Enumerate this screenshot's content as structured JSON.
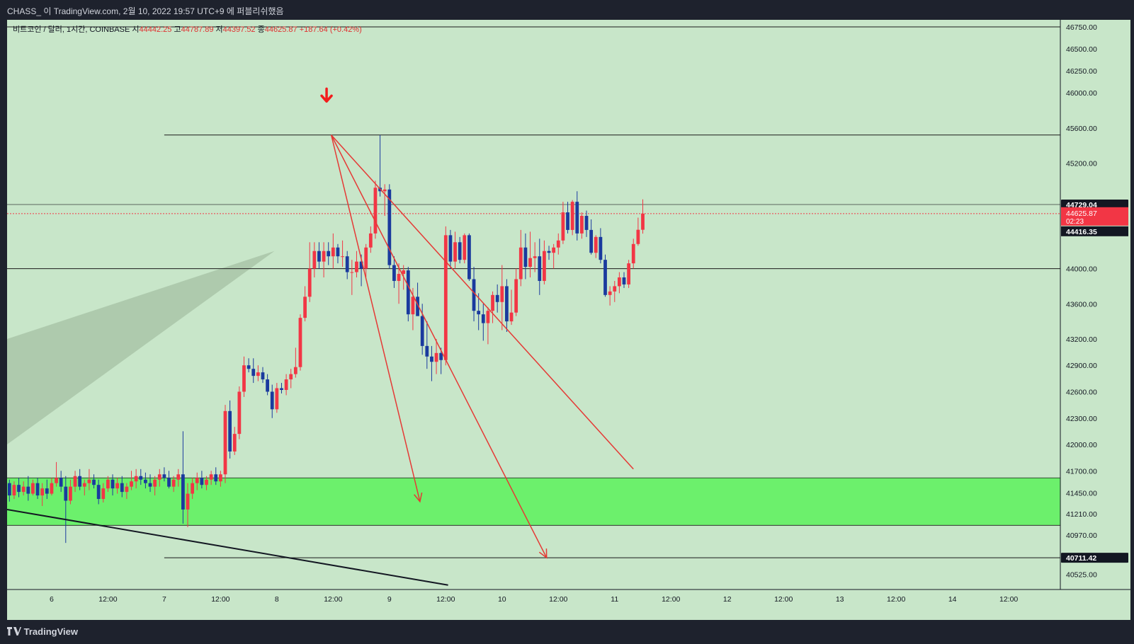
{
  "header": {
    "publish_line": "CHASS_ 이 TradingView.com, 2월 10, 2022 19:57 UTC+9 에 퍼블리쉬했음"
  },
  "legend": {
    "symbol": "비트코인 / 달러, 1시간, COINBASE",
    "open_label": "시",
    "open": "44442.25",
    "high_label": "고",
    "high": "44787.89",
    "low_label": "저",
    "low": "44397.52",
    "close_label": "종",
    "close": "44625.87",
    "change": "+187.64 (+0.42%)"
  },
  "footer": {
    "brand": "TradingView",
    "logo_icon": "tradingview-logo-icon"
  },
  "price_badges": {
    "high_badge": "44729.04",
    "last_price": "44625.87",
    "countdown": "02:23",
    "low_badge": "44416.35",
    "target_badge": "40711.42"
  },
  "colors": {
    "background": "#c8e6c9",
    "up_candle": "#f23645",
    "down_candle": "#1a3a9e",
    "zone": "#6cf06c",
    "trendline": "#e53935",
    "wedge": "#a9c4a8"
  },
  "chart_data": {
    "type": "candlestick",
    "symbol": "BTC/USD",
    "interval": "1h",
    "y_axis": {
      "ticks": [
        40525,
        40970,
        41210,
        41450,
        41700,
        42000,
        42300,
        42600,
        42900,
        43200,
        43600,
        44000,
        45200,
        45600,
        46000,
        46250,
        46500,
        46750
      ],
      "range": [
        40350,
        46830
      ]
    },
    "x_axis": {
      "ticks": [
        {
          "label": "6",
          "t": 0
        },
        {
          "label": "12:00",
          "t": 12
        },
        {
          "label": "7",
          "t": 24
        },
        {
          "label": "12:00",
          "t": 36
        },
        {
          "label": "8",
          "t": 48
        },
        {
          "label": "12:00",
          "t": 60
        },
        {
          "label": "9",
          "t": 72
        },
        {
          "label": "12:00",
          "t": 84
        },
        {
          "label": "10",
          "t": 96
        },
        {
          "label": "12:00",
          "t": 108
        },
        {
          "label": "11",
          "t": 120
        },
        {
          "label": "12:00",
          "t": 132
        },
        {
          "label": "12",
          "t": 144
        },
        {
          "label": "12:00",
          "t": 156
        },
        {
          "label": "13",
          "t": 168
        },
        {
          "label": "12:00",
          "t": 180
        },
        {
          "label": "14",
          "t": 192
        },
        {
          "label": "12:00",
          "t": 204
        }
      ],
      "range": [
        -9.5,
        215
      ]
    },
    "candles_ohlc": [
      [
        41560,
        41600,
        41350,
        41420
      ],
      [
        41420,
        41580,
        41380,
        41540
      ],
      [
        41540,
        41620,
        41400,
        41460
      ],
      [
        41460,
        41580,
        41420,
        41520
      ],
      [
        41520,
        41640,
        41360,
        41440
      ],
      [
        41440,
        41600,
        41420,
        41560
      ],
      [
        41560,
        41620,
        41380,
        41420
      ],
      [
        41420,
        41560,
        41300,
        41500
      ],
      [
        41500,
        41600,
        41380,
        41440
      ],
      [
        41440,
        41620,
        41420,
        41560
      ],
      [
        41560,
        41800,
        41520,
        41620
      ],
      [
        41620,
        41700,
        41460,
        41520
      ],
      [
        41520,
        41640,
        40880,
        41360
      ],
      [
        41360,
        41600,
        41320,
        41520
      ],
      [
        41520,
        41700,
        41460,
        41640
      ],
      [
        41640,
        41720,
        41480,
        41520
      ],
      [
        41520,
        41600,
        41420,
        41560
      ],
      [
        41560,
        41720,
        41480,
        41600
      ],
      [
        41600,
        41660,
        41500,
        41540
      ],
      [
        41540,
        41600,
        41320,
        41380
      ],
      [
        41380,
        41560,
        41340,
        41500
      ],
      [
        41500,
        41640,
        41460,
        41600
      ],
      [
        41600,
        41660,
        41420,
        41500
      ],
      [
        41500,
        41620,
        41440,
        41560
      ],
      [
        41560,
        41640,
        41400,
        41460
      ],
      [
        41460,
        41560,
        41380,
        41520
      ],
      [
        41520,
        41700,
        41480,
        41580
      ],
      [
        41580,
        41720,
        41500,
        41640
      ],
      [
        41640,
        41720,
        41540,
        41600
      ],
      [
        41600,
        41680,
        41500,
        41560
      ],
      [
        41560,
        41660,
        41460,
        41520
      ],
      [
        41520,
        41640,
        41420,
        41600
      ],
      [
        41600,
        41720,
        41520,
        41660
      ],
      [
        41660,
        41740,
        41580,
        41620
      ],
      [
        41620,
        41700,
        41500,
        41520
      ],
      [
        41520,
        41640,
        41460,
        41600
      ],
      [
        41600,
        41720,
        41520,
        41660
      ],
      [
        41660,
        42150,
        41100,
        41260
      ],
      [
        41260,
        41560,
        41060,
        41440
      ],
      [
        41440,
        41620,
        41380,
        41560
      ],
      [
        41560,
        41680,
        41480,
        41620
      ],
      [
        41620,
        41700,
        41500,
        41540
      ],
      [
        41540,
        41640,
        41480,
        41600
      ],
      [
        41600,
        41700,
        41540,
        41660
      ],
      [
        41660,
        41740,
        41540,
        41580
      ],
      [
        41580,
        41700,
        41520,
        41660
      ],
      [
        41660,
        42450,
        41560,
        42380
      ],
      [
        42380,
        42500,
        41840,
        41920
      ],
      [
        41920,
        42200,
        41880,
        42120
      ],
      [
        42120,
        42660,
        42060,
        42600
      ],
      [
        42600,
        43000,
        42540,
        42900
      ],
      [
        42900,
        42980,
        42820,
        42860
      ],
      [
        42860,
        42980,
        42700,
        42780
      ],
      [
        42780,
        42900,
        42720,
        42820
      ],
      [
        42820,
        42880,
        42700,
        42740
      ],
      [
        42740,
        42800,
        42560,
        42600
      ],
      [
        42600,
        42680,
        42300,
        42400
      ],
      [
        42400,
        42700,
        42360,
        42640
      ],
      [
        42640,
        42700,
        42580,
        42620
      ],
      [
        42620,
        42800,
        42560,
        42740
      ],
      [
        42740,
        42860,
        42640,
        42800
      ],
      [
        42800,
        43100,
        42760,
        42880
      ],
      [
        42880,
        43480,
        42840,
        43440
      ],
      [
        43440,
        43800,
        43400,
        43680
      ],
      [
        43680,
        44300,
        43620,
        44000
      ],
      [
        44000,
        44300,
        43900,
        44200
      ],
      [
        44200,
        44300,
        44000,
        44080
      ],
      [
        44080,
        44300,
        43900,
        44200
      ],
      [
        44200,
        44300,
        44040,
        44140
      ],
      [
        44140,
        44400,
        44000,
        44240
      ],
      [
        44240,
        44280,
        44060,
        44140
      ],
      [
        44140,
        44320,
        44020,
        44140
      ],
      [
        44140,
        44200,
        43880,
        43960
      ],
      [
        43960,
        44100,
        43700,
        43960
      ],
      [
        43960,
        44200,
        43900,
        44080
      ],
      [
        44080,
        44160,
        43800,
        44000
      ],
      [
        44000,
        44280,
        43900,
        44240
      ],
      [
        44240,
        44480,
        44180,
        44400
      ],
      [
        44400,
        45000,
        44340,
        44920
      ],
      [
        44920,
        45520,
        44820,
        44880
      ],
      [
        44880,
        44960,
        44600,
        44900
      ],
      [
        44900,
        44960,
        44000,
        44040
      ],
      [
        44040,
        44140,
        43780,
        43860
      ],
      [
        43860,
        44060,
        43600,
        43940
      ],
      [
        43940,
        44040,
        43760,
        43980
      ],
      [
        43980,
        44020,
        43400,
        43480
      ],
      [
        43480,
        43780,
        43300,
        43680
      ],
      [
        43680,
        43840,
        43480,
        43460
      ],
      [
        43460,
        43600,
        43020,
        43120
      ],
      [
        43120,
        43400,
        42860,
        43000
      ],
      [
        43000,
        43120,
        42720,
        42940
      ],
      [
        42940,
        43200,
        42800,
        43040
      ],
      [
        43040,
        43100,
        42800,
        42960
      ],
      [
        42960,
        44480,
        42900,
        44380
      ],
      [
        44380,
        44440,
        44000,
        44080
      ],
      [
        44080,
        44420,
        44000,
        44300
      ],
      [
        44300,
        44360,
        44060,
        44100
      ],
      [
        44100,
        44400,
        44060,
        44380
      ],
      [
        44380,
        44400,
        43860,
        43880
      ],
      [
        43880,
        44020,
        43400,
        43520
      ],
      [
        43520,
        43720,
        43300,
        43480
      ],
      [
        43480,
        43600,
        43180,
        43380
      ],
      [
        43380,
        43560,
        43140,
        43520
      ],
      [
        43520,
        43740,
        43380,
        43700
      ],
      [
        43700,
        43820,
        43500,
        43620
      ],
      [
        43620,
        44040,
        43300,
        43800
      ],
      [
        43800,
        43880,
        43280,
        43400
      ],
      [
        43400,
        43760,
        43360,
        43500
      ],
      [
        43500,
        44000,
        43460,
        43880
      ],
      [
        43880,
        44440,
        43800,
        44240
      ],
      [
        44240,
        44400,
        43880,
        44020
      ],
      [
        44020,
        44420,
        43900,
        44120
      ],
      [
        44120,
        44300,
        43960,
        44140
      ],
      [
        44140,
        44340,
        43700,
        43860
      ],
      [
        43860,
        44320,
        43820,
        44200
      ],
      [
        44200,
        44260,
        44100,
        44180
      ],
      [
        44180,
        44280,
        44000,
        44240
      ],
      [
        44240,
        44400,
        44160,
        44320
      ],
      [
        44320,
        44760,
        44280,
        44640
      ],
      [
        44640,
        44760,
        44400,
        44440
      ],
      [
        44440,
        44780,
        44380,
        44760
      ],
      [
        44760,
        44880,
        44320,
        44400
      ],
      [
        44400,
        44640,
        44340,
        44600
      ],
      [
        44600,
        44660,
        44360,
        44440
      ],
      [
        44440,
        44560,
        44160,
        44180
      ],
      [
        44180,
        44380,
        44120,
        44360
      ],
      [
        44360,
        44460,
        44060,
        44100
      ],
      [
        44100,
        44160,
        43680,
        43700
      ],
      [
        43700,
        43800,
        43580,
        43740
      ],
      [
        43740,
        43860,
        43620,
        43800
      ],
      [
        43800,
        43960,
        43720,
        43900
      ],
      [
        43900,
        43960,
        43780,
        43820
      ],
      [
        43820,
        44100,
        43780,
        44060
      ],
      [
        44060,
        44340,
        44000,
        44280
      ],
      [
        44280,
        44580,
        44260,
        44442
      ],
      [
        44442,
        44788,
        44398,
        44626
      ]
    ],
    "horizontal_lines": [
      45520,
      44729.04,
      44000,
      40711.42
    ],
    "last_price_line": 44625.87,
    "support_zone": [
      41080,
      41620
    ],
    "trendlines": [
      {
        "from": [
          59.6,
          45520
        ],
        "to": [
          78.5,
          41350
        ],
        "arrow": true
      },
      {
        "from": [
          59.6,
          45520
        ],
        "to": [
          105.5,
          40711.42
        ],
        "arrow": true
      },
      {
        "from": [
          59.6,
          45520
        ],
        "to": [
          124,
          41720
        ],
        "arrow": false
      }
    ],
    "support_trendline": {
      "from": [
        -9.5,
        41260
      ],
      "to": [
        84.5,
        40400
      ]
    },
    "wedge_polygon": [
      [
        -9.5,
        43200
      ],
      [
        47.5,
        44200
      ],
      [
        -9.5,
        42000
      ]
    ],
    "signal_arrow": {
      "t": 58.6,
      "value": 45950,
      "direction": "down"
    }
  }
}
